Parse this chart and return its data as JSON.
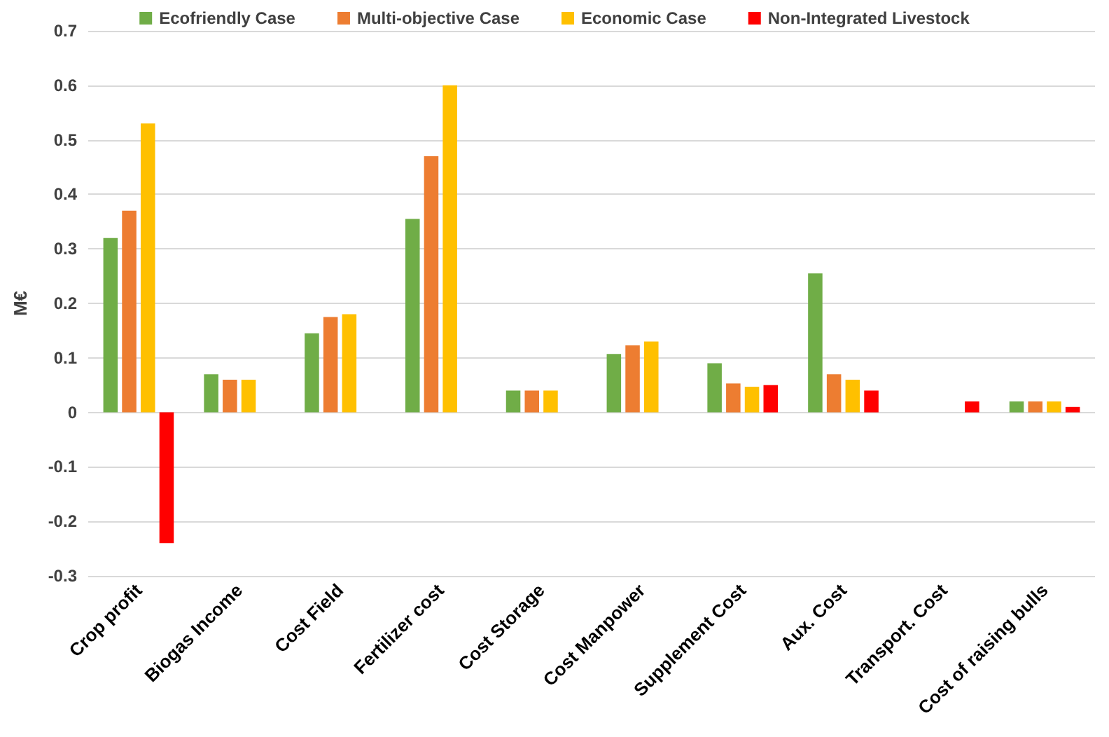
{
  "chart_data": {
    "type": "bar",
    "ylabel": "M€",
    "categories": [
      "Crop profit",
      "Biogas Income",
      "Cost Field",
      "Fertilizer cost",
      "Cost Storage",
      "Cost Manpower",
      "Supplement Cost",
      "Aux. Cost",
      "Transport. Cost",
      "Cost of raising bulls"
    ],
    "series": [
      {
        "name": "Ecofriendly Case",
        "color": "#70ad47",
        "values": [
          0.32,
          0.07,
          0.145,
          0.355,
          0.04,
          0.107,
          0.09,
          0.255,
          null,
          0.02
        ]
      },
      {
        "name": "Multi-objective Case",
        "color": "#ed7d31",
        "values": [
          0.37,
          0.06,
          0.175,
          0.47,
          0.04,
          0.123,
          0.053,
          0.07,
          null,
          0.02
        ]
      },
      {
        "name": "Economic Case",
        "color": "#ffc000",
        "values": [
          0.53,
          0.06,
          0.18,
          0.6,
          0.04,
          0.13,
          0.047,
          0.06,
          null,
          0.02
        ]
      },
      {
        "name": "Non-Integrated Livestock",
        "color": "#ff0000",
        "values": [
          -0.24,
          null,
          null,
          null,
          null,
          null,
          0.05,
          0.04,
          0.02,
          0.01
        ]
      }
    ],
    "ylim": [
      -0.3,
      0.7
    ],
    "yticks": [
      -0.3,
      -0.2,
      -0.1,
      0,
      0.1,
      0.2,
      0.3,
      0.4,
      0.5,
      0.6,
      0.7
    ],
    "grid": "y",
    "legend": "top"
  }
}
